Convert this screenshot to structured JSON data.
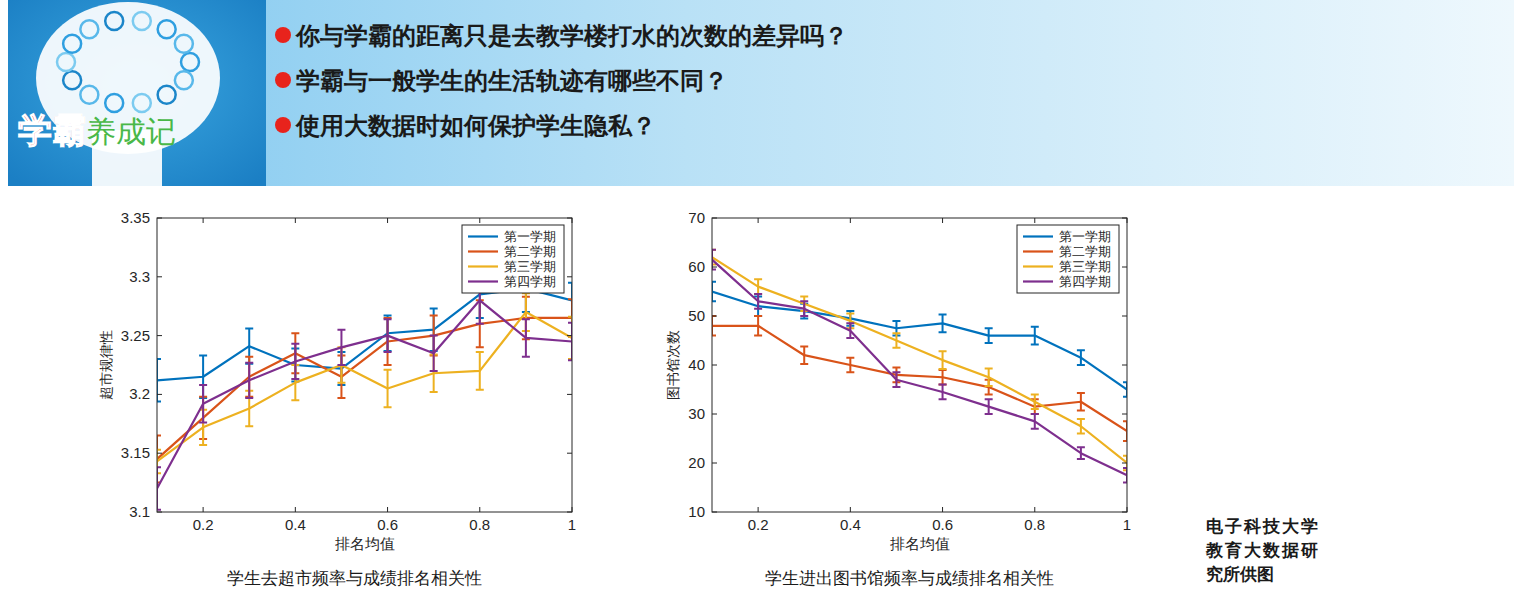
{
  "header": {
    "logo_main": "学霸",
    "logo_sub": "养成记",
    "questions": [
      "你与学霸的距离只是去教学楼打水的次数的差异吗？",
      "学霸与一般学生的生活轨迹有哪些不同？",
      "使用大数据时如何保护学生隐私？"
    ]
  },
  "chart_data": [
    {
      "type": "line",
      "title": "学生去超市频率与成绩排名相关性",
      "x_label": "排名均值",
      "y_label": "超市规律性",
      "x": [
        0.1,
        0.2,
        0.3,
        0.4,
        0.5,
        0.6,
        0.7,
        0.8,
        0.9,
        1
      ],
      "xlim": [
        0.1,
        1
      ],
      "xticks": [
        0.2,
        0.4,
        0.6,
        0.8,
        1
      ],
      "ylim": [
        3.1,
        3.35
      ],
      "yticks": [
        3.1,
        3.15,
        3.2,
        3.25,
        3.3,
        3.35
      ],
      "grid": false,
      "legend": "upper right",
      "series": [
        {
          "name": "第一学期",
          "color": "#0072bd",
          "values": [
            3.212,
            3.215,
            3.241,
            3.225,
            3.222,
            3.252,
            3.255,
            3.285,
            3.29,
            3.28
          ],
          "errors": [
            0.018,
            0.018,
            0.015,
            0.014,
            0.014,
            0.015,
            0.018,
            0.02,
            0.02,
            0.015
          ]
        },
        {
          "name": "第二学期",
          "color": "#d95319",
          "values": [
            3.145,
            3.18,
            3.215,
            3.235,
            3.215,
            3.245,
            3.25,
            3.26,
            3.265,
            3.265
          ],
          "errors": [
            0.02,
            0.018,
            0.017,
            0.017,
            0.018,
            0.02,
            0.017,
            0.02,
            0.018,
            0.016
          ]
        },
        {
          "name": "第三学期",
          "color": "#edb120",
          "values": [
            3.143,
            3.172,
            3.188,
            3.21,
            3.225,
            3.205,
            3.218,
            3.22,
            3.27,
            3.248
          ],
          "errors": [
            0.01,
            0.015,
            0.015,
            0.015,
            0.015,
            0.016,
            0.016,
            0.016,
            0.016,
            0.018
          ]
        },
        {
          "name": "第四学期",
          "color": "#7e2f8e",
          "values": [
            3.12,
            3.192,
            3.212,
            3.228,
            3.24,
            3.25,
            3.235,
            3.28,
            3.248,
            3.245
          ],
          "errors": [
            0.018,
            0.016,
            0.015,
            0.015,
            0.015,
            0.014,
            0.015,
            0.02,
            0.016,
            0.016
          ]
        }
      ]
    },
    {
      "type": "line",
      "title": "学生进出图书馆频率与成绩排名相关性",
      "x_label": "排名均值",
      "y_label": "图书馆次数",
      "x": [
        0.1,
        0.2,
        0.3,
        0.4,
        0.5,
        0.6,
        0.7,
        0.8,
        0.9,
        1
      ],
      "xlim": [
        0.1,
        1
      ],
      "xticks": [
        0.2,
        0.4,
        0.6,
        0.8,
        1
      ],
      "ylim": [
        10,
        70
      ],
      "yticks": [
        10,
        20,
        30,
        40,
        50,
        60,
        70
      ],
      "grid": false,
      "legend": "upper right",
      "series": [
        {
          "name": "第一学期",
          "color": "#0072bd",
          "values": [
            55,
            52,
            51,
            49.5,
            47.5,
            48.5,
            46,
            46,
            41.5,
            35
          ],
          "errors": [
            2,
            2,
            1.5,
            1.5,
            1.5,
            1.8,
            1.5,
            1.8,
            1.5,
            1.5
          ]
        },
        {
          "name": "第二学期",
          "color": "#d95319",
          "values": [
            48,
            48,
            42,
            40,
            38,
            37.5,
            35.5,
            31.5,
            32.5,
            26.5
          ],
          "errors": [
            2,
            2,
            1.8,
            1.5,
            1.5,
            1.5,
            1.5,
            1.5,
            1.8,
            2
          ]
        },
        {
          "name": "第三学期",
          "color": "#edb120",
          "values": [
            62,
            56,
            52.5,
            49,
            45,
            41,
            37.5,
            32.5,
            27.5,
            20
          ],
          "errors": [
            1.5,
            1.5,
            1.5,
            1.5,
            1.5,
            1.8,
            1.8,
            1.5,
            1.5,
            1.5
          ]
        },
        {
          "name": "第四学期",
          "color": "#7e2f8e",
          "values": [
            61.5,
            53,
            51.5,
            47,
            37,
            34.5,
            31.5,
            28.5,
            22,
            17.5
          ],
          "errors": [
            2,
            1.5,
            1.5,
            1.5,
            1.5,
            1.5,
            1.5,
            1.5,
            1.2,
            1.5
          ]
        }
      ]
    }
  ],
  "credit": "电子科技大学教育大数据研究所供图"
}
